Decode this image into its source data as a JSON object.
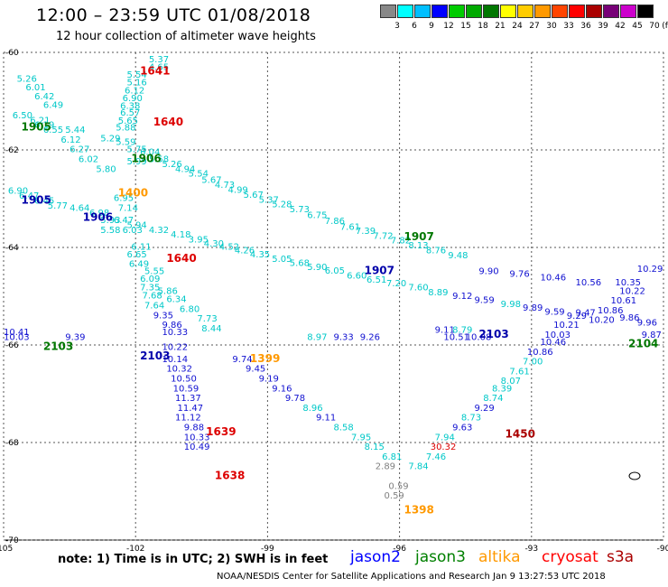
{
  "header": {
    "title": "12:00 – 23:59 UTC 01/08/2018",
    "subtitle": "12 hour collection of altimeter wave heights"
  },
  "legend": {
    "unit": "(ft)",
    "labels": [
      "3",
      "6",
      "9",
      "12",
      "15",
      "18",
      "21",
      "24",
      "27",
      "30",
      "33",
      "36",
      "39",
      "42",
      "45",
      "70"
    ],
    "colors": [
      "#888888",
      "#00ffff",
      "#00bfff",
      "#0000ff",
      "#00cc00",
      "#00aa00",
      "#007700",
      "#ffff00",
      "#ffcc00",
      "#ff9900",
      "#ff4400",
      "#ff0000",
      "#aa0000",
      "#770077",
      "#cc00cc",
      "#000000"
    ]
  },
  "axes": {
    "lat_labels": [
      "-60",
      "-62",
      "-64",
      "-66",
      "-68",
      "-70"
    ],
    "lon_labels": [
      "-105",
      "-102",
      "-99",
      "-96",
      "-93",
      "-90"
    ],
    "lon_values": [
      -105,
      -102,
      -99,
      -96,
      -93,
      -90
    ],
    "lat_values": [
      -60,
      -62,
      -64,
      -66,
      -68,
      -70
    ]
  },
  "colors": {
    "cyan": "#00c8c8",
    "blue": "#1010d0",
    "gray": "#808080",
    "jason2": "#0000ff",
    "jason3": "#008000",
    "altika": "#ff9900",
    "cryosat": "#ff0000",
    "s3a": "#aa0000"
  },
  "passes": [
    {
      "label": "1641",
      "color": "#dd0000",
      "lon": -101.9,
      "lat": -60.45
    },
    {
      "label": "1640",
      "color": "#dd0000",
      "lon": -101.6,
      "lat": -61.5
    },
    {
      "label": "1640",
      "color": "#dd0000",
      "lon": -101.3,
      "lat": -64.3
    },
    {
      "label": "1639",
      "color": "#dd0000",
      "lon": -100.4,
      "lat": -67.85
    },
    {
      "label": "1638",
      "color": "#dd0000",
      "lon": -100.2,
      "lat": -68.75
    },
    {
      "label": "1905",
      "color": "#007700",
      "lon": -104.6,
      "lat": -61.6
    },
    {
      "label": "1906",
      "color": "#007700",
      "lon": -102.1,
      "lat": -62.25
    },
    {
      "label": "1907",
      "color": "#007700",
      "lon": -95.9,
      "lat": -63.85
    },
    {
      "label": "1905",
      "color": "#0000aa",
      "lon": -104.6,
      "lat": -63.1
    },
    {
      "label": "1906",
      "color": "#0000aa",
      "lon": -103.2,
      "lat": -63.45
    },
    {
      "label": "1907",
      "color": "#0000aa",
      "lon": -96.8,
      "lat": -64.55
    },
    {
      "label": "1400",
      "color": "#ff9900",
      "lon": -102.4,
      "lat": -62.95
    },
    {
      "label": "2103",
      "color": "#0000aa",
      "lon": -101.9,
      "lat": -66.3
    },
    {
      "label": "2103",
      "color": "#0000aa",
      "lon": -94.2,
      "lat": -65.85
    },
    {
      "label": "2104",
      "color": "#007700",
      "lon": -90.8,
      "lat": -66.05
    },
    {
      "label": "2103",
      "color": "#007700",
      "lon": -104.1,
      "lat": -66.1
    },
    {
      "label": "1399",
      "color": "#ff9900",
      "lon": -99.4,
      "lat": -66.35
    },
    {
      "label": "1398",
      "color": "#ff9900",
      "lon": -95.9,
      "lat": -69.45
    },
    {
      "label": "1450",
      "color": "#aa0000",
      "lon": -93.6,
      "lat": -67.9
    }
  ],
  "wave_heights": [
    {
      "v": "5.37",
      "c": "c",
      "lon": -101.7,
      "lat": -60.2
    },
    {
      "v": "4.65",
      "c": "c",
      "lon": -101.7,
      "lat": -60.36
    },
    {
      "v": "5.54",
      "c": "c",
      "lon": -102.2,
      "lat": -60.52
    },
    {
      "v": "5.16",
      "c": "c",
      "lon": -102.2,
      "lat": -60.68
    },
    {
      "v": "6.12",
      "c": "c",
      "lon": -102.25,
      "lat": -60.84
    },
    {
      "v": "6.90",
      "c": "c",
      "lon": -102.3,
      "lat": -61.0
    },
    {
      "v": "6.38",
      "c": "c",
      "lon": -102.35,
      "lat": -61.16
    },
    {
      "v": "6.57",
      "c": "c",
      "lon": -102.35,
      "lat": -61.3
    },
    {
      "v": "5.65",
      "c": "c",
      "lon": -102.4,
      "lat": -61.46
    },
    {
      "v": "5.88",
      "c": "c",
      "lon": -102.45,
      "lat": -61.6
    },
    {
      "v": "5.26",
      "c": "c",
      "lon": -104.7,
      "lat": -60.6
    },
    {
      "v": "6.01",
      "c": "c",
      "lon": -104.5,
      "lat": -60.78
    },
    {
      "v": "6.42",
      "c": "c",
      "lon": -104.3,
      "lat": -60.96
    },
    {
      "v": "6.49",
      "c": "c",
      "lon": -104.1,
      "lat": -61.14
    },
    {
      "v": "6.50",
      "c": "c",
      "lon": -104.8,
      "lat": -61.35
    },
    {
      "v": "6.21",
      "c": "c",
      "lon": -104.4,
      "lat": -61.45
    },
    {
      "v": "6.19",
      "c": "c",
      "lon": -104.3,
      "lat": -61.55
    },
    {
      "v": "6.55",
      "c": "c",
      "lon": -104.1,
      "lat": -61.65
    },
    {
      "v": "5.44",
      "c": "c",
      "lon": -103.6,
      "lat": -61.65
    },
    {
      "v": "6.12",
      "c": "c",
      "lon": -103.7,
      "lat": -61.85
    },
    {
      "v": "6.27",
      "c": "c",
      "lon": -103.5,
      "lat": -62.05
    },
    {
      "v": "6.02",
      "c": "c",
      "lon": -103.3,
      "lat": -62.25
    },
    {
      "v": "5.80",
      "c": "c",
      "lon": -102.9,
      "lat": -62.45
    },
    {
      "v": "5.29",
      "c": "c",
      "lon": -102.8,
      "lat": -61.82
    },
    {
      "v": "5.59",
      "c": "c",
      "lon": -102.45,
      "lat": -61.9
    },
    {
      "v": "5.75",
      "c": "c",
      "lon": -102.2,
      "lat": -62.05
    },
    {
      "v": "6.04",
      "c": "c",
      "lon": -101.9,
      "lat": -62.1
    },
    {
      "v": "5.58",
      "c": "c",
      "lon": -101.7,
      "lat": -62.25
    },
    {
      "v": "5.26",
      "c": "c",
      "lon": -101.4,
      "lat": -62.35
    },
    {
      "v": "4.94",
      "c": "c",
      "lon": -101.1,
      "lat": -62.45
    },
    {
      "v": "5.54",
      "c": "c",
      "lon": -100.8,
      "lat": -62.55
    },
    {
      "v": "5.67",
      "c": "c",
      "lon": -100.5,
      "lat": -62.68
    },
    {
      "v": "4.73",
      "c": "c",
      "lon": -100.2,
      "lat": -62.78
    },
    {
      "v": "4.99",
      "c": "c",
      "lon": -99.9,
      "lat": -62.88
    },
    {
      "v": "5.67",
      "c": "c",
      "lon": -99.55,
      "lat": -62.98
    },
    {
      "v": "5.37",
      "c": "c",
      "lon": -99.2,
      "lat": -63.08
    },
    {
      "v": "5.28",
      "c": "c",
      "lon": -98.9,
      "lat": -63.18
    },
    {
      "v": "5.73",
      "c": "c",
      "lon": -98.5,
      "lat": -63.28
    },
    {
      "v": "6.75",
      "c": "c",
      "lon": -98.1,
      "lat": -63.4
    },
    {
      "v": "7.86",
      "c": "c",
      "lon": -97.7,
      "lat": -63.52
    },
    {
      "v": "7.61",
      "c": "c",
      "lon": -97.35,
      "lat": -63.64
    },
    {
      "v": "7.39",
      "c": "c",
      "lon": -97.0,
      "lat": -63.72
    },
    {
      "v": "7.72",
      "c": "c",
      "lon": -96.6,
      "lat": -63.82
    },
    {
      "v": "7.82",
      "c": "c",
      "lon": -96.2,
      "lat": -63.92
    },
    {
      "v": "8.13",
      "c": "c",
      "lon": -95.8,
      "lat": -64.02
    },
    {
      "v": "8.76",
      "c": "c",
      "lon": -95.4,
      "lat": -64.12
    },
    {
      "v": "9.48",
      "c": "c",
      "lon": -94.9,
      "lat": -64.22
    },
    {
      "v": "5.99",
      "c": "c",
      "lon": -102.2,
      "lat": -62.3
    },
    {
      "v": "6.90",
      "c": "c",
      "lon": -104.9,
      "lat": -62.9
    },
    {
      "v": "6.47",
      "c": "c",
      "lon": -104.65,
      "lat": -63.0
    },
    {
      "v": "6.45",
      "c": "c",
      "lon": -104.3,
      "lat": -63.1
    },
    {
      "v": "5.77",
      "c": "c",
      "lon": -104.0,
      "lat": -63.2
    },
    {
      "v": "4.64",
      "c": "c",
      "lon": -103.5,
      "lat": -63.25
    },
    {
      "v": "6.95",
      "c": "c",
      "lon": -102.5,
      "lat": -63.05
    },
    {
      "v": "7.14",
      "c": "c",
      "lon": -102.4,
      "lat": -63.25
    },
    {
      "v": "6.98",
      "c": "c",
      "lon": -103.05,
      "lat": -63.35
    },
    {
      "v": "5.93",
      "c": "c",
      "lon": -102.8,
      "lat": -63.5
    },
    {
      "v": "6.47",
      "c": "c",
      "lon": -102.5,
      "lat": -63.5
    },
    {
      "v": "5.94",
      "c": "c",
      "lon": -102.2,
      "lat": -63.6
    },
    {
      "v": "5.58",
      "c": "c",
      "lon": -102.8,
      "lat": -63.7
    },
    {
      "v": "6.03",
      "c": "c",
      "lon": -102.3,
      "lat": -63.7
    },
    {
      "v": "4.32",
      "c": "c",
      "lon": -101.7,
      "lat": -63.7
    },
    {
      "v": "4.18",
      "c": "c",
      "lon": -101.2,
      "lat": -63.8
    },
    {
      "v": "3.95",
      "c": "c",
      "lon": -100.8,
      "lat": -63.9
    },
    {
      "v": "4.30",
      "c": "c",
      "lon": -100.45,
      "lat": -63.98
    },
    {
      "v": "4.52",
      "c": "c",
      "lon": -100.1,
      "lat": -64.05
    },
    {
      "v": "4.26",
      "c": "c",
      "lon": -99.75,
      "lat": -64.12
    },
    {
      "v": "4.35",
      "c": "c",
      "lon": -99.4,
      "lat": -64.2
    },
    {
      "v": "5.05",
      "c": "c",
      "lon": -98.9,
      "lat": -64.3
    },
    {
      "v": "5.68",
      "c": "c",
      "lon": -98.5,
      "lat": -64.38
    },
    {
      "v": "5.90",
      "c": "c",
      "lon": -98.1,
      "lat": -64.46
    },
    {
      "v": "6.05",
      "c": "c",
      "lon": -97.7,
      "lat": -64.54
    },
    {
      "v": "6.60",
      "c": "c",
      "lon": -97.2,
      "lat": -64.64
    },
    {
      "v": "6.51",
      "c": "c",
      "lon": -96.75,
      "lat": -64.72
    },
    {
      "v": "7.20",
      "c": "c",
      "lon": -96.3,
      "lat": -64.8
    },
    {
      "v": "7.60",
      "c": "c",
      "lon": -95.8,
      "lat": -64.88
    },
    {
      "v": "8.89",
      "c": "c",
      "lon": -95.35,
      "lat": -64.98
    },
    {
      "v": "9.12",
      "b": 1,
      "c": "b",
      "lon": -94.8,
      "lat": -65.06
    },
    {
      "v": "9.59",
      "c": "b",
      "lon": -94.3,
      "lat": -65.14
    },
    {
      "v": "9.98",
      "c": "c",
      "lon": -93.7,
      "lat": -65.22
    },
    {
      "v": "9.89",
      "c": "b",
      "lon": -93.2,
      "lat": -65.3
    },
    {
      "v": "9.59",
      "c": "b",
      "lon": -92.7,
      "lat": -65.38
    },
    {
      "v": "9.29",
      "c": "b",
      "lon": -92.2,
      "lat": -65.46
    },
    {
      "v": "6.11",
      "c": "c",
      "lon": -102.1,
      "lat": -64.05
    },
    {
      "v": "6.65",
      "c": "c",
      "lon": -102.2,
      "lat": -64.2
    },
    {
      "v": "6.49",
      "c": "c",
      "lon": -102.15,
      "lat": -64.4
    },
    {
      "v": "5.55",
      "c": "c",
      "lon": -101.8,
      "lat": -64.55
    },
    {
      "v": "6.09",
      "c": "c",
      "lon": -101.9,
      "lat": -64.7
    },
    {
      "v": "7.35",
      "c": "c",
      "lon": -101.9,
      "lat": -64.88
    },
    {
      "v": "5.86",
      "c": "c",
      "lon": -101.5,
      "lat": -64.95
    },
    {
      "v": "7.68",
      "c": "c",
      "lon": -101.85,
      "lat": -65.05
    },
    {
      "v": "6.34",
      "c": "c",
      "lon": -101.3,
      "lat": -65.12
    },
    {
      "v": "7.64",
      "c": "c",
      "lon": -101.8,
      "lat": -65.25
    },
    {
      "v": "6.80",
      "c": "c",
      "lon": -101.0,
      "lat": -65.32
    },
    {
      "v": "9.35",
      "c": "b",
      "lon": -101.6,
      "lat": -65.45
    },
    {
      "v": "7.73",
      "c": "c",
      "lon": -100.6,
      "lat": -65.52
    },
    {
      "v": "9.86",
      "c": "b",
      "lon": -101.4,
      "lat": -65.65
    },
    {
      "v": "8.44",
      "c": "c",
      "lon": -100.5,
      "lat": -65.72
    },
    {
      "v": "10.33",
      "c": "b",
      "lon": -101.4,
      "lat": -65.8
    },
    {
      "v": "10.22",
      "c": "b",
      "lon": -101.4,
      "lat": -66.1
    },
    {
      "v": "10.14",
      "c": "b",
      "lon": -101.4,
      "lat": -66.35
    },
    {
      "v": "10.32",
      "c": "b",
      "lon": -101.3,
      "lat": -66.55
    },
    {
      "v": "10.50",
      "c": "b",
      "lon": -101.2,
      "lat": -66.75
    },
    {
      "v": "10.59",
      "c": "b",
      "lon": -101.15,
      "lat": -66.95
    },
    {
      "v": "11.37",
      "c": "b",
      "lon": -101.1,
      "lat": -67.15
    },
    {
      "v": "11.47",
      "c": "b",
      "lon": -101.05,
      "lat": -67.35
    },
    {
      "v": "11.12",
      "c": "b",
      "lon": -101.1,
      "lat": -67.55
    },
    {
      "v": "9.88",
      "c": "b",
      "lon": -100.9,
      "lat": -67.75
    },
    {
      "v": "10.33",
      "c": "b",
      "lon": -100.9,
      "lat": -67.95
    },
    {
      "v": "10.49",
      "c": "b",
      "lon": -100.9,
      "lat": -68.15
    },
    {
      "v": "9.74",
      "c": "b",
      "lon": -99.8,
      "lat": -66.35
    },
    {
      "v": "9.45",
      "c": "b",
      "lon": -99.5,
      "lat": -66.55
    },
    {
      "v": "9.19",
      "c": "b",
      "lon": -99.2,
      "lat": -66.75
    },
    {
      "v": "9.16",
      "c": "b",
      "lon": -98.9,
      "lat": -66.95
    },
    {
      "v": "9.78",
      "c": "b",
      "lon": -98.6,
      "lat": -67.15
    },
    {
      "v": "8.96",
      "c": "c",
      "lon": -98.2,
      "lat": -67.35
    },
    {
      "v": "9.11",
      "c": "b",
      "lon": -97.9,
      "lat": -67.55
    },
    {
      "v": "8.58",
      "c": "c",
      "lon": -97.5,
      "lat": -67.75
    },
    {
      "v": "7.95",
      "c": "c",
      "lon": -97.1,
      "lat": -67.95
    },
    {
      "v": "8.15",
      "c": "c",
      "lon": -96.8,
      "lat": -68.15
    },
    {
      "v": "6.81",
      "c": "c",
      "lon": -96.4,
      "lat": -68.35
    },
    {
      "v": "2.89",
      "c": "g",
      "lon": -96.55,
      "lat": -68.55
    },
    {
      "v": "0.59",
      "c": "g",
      "lon": -96.25,
      "lat": -68.95
    },
    {
      "v": "0.59",
      "c": "g",
      "lon": -96.35,
      "lat": -69.15
    },
    {
      "v": "7.84",
      "c": "c",
      "lon": -95.8,
      "lat": -68.55
    },
    {
      "v": "7.46",
      "c": "c",
      "lon": -95.4,
      "lat": -68.35
    },
    {
      "v": "30.32",
      "c": "r",
      "lon": -95.3,
      "lat": -68.15
    },
    {
      "v": "7.94",
      "c": "c",
      "lon": -95.2,
      "lat": -67.95
    },
    {
      "v": "9.63",
      "c": "b",
      "lon": -94.8,
      "lat": -67.75
    },
    {
      "v": "8.73",
      "c": "c",
      "lon": -94.6,
      "lat": -67.55
    },
    {
      "v": "9.29",
      "c": "b",
      "lon": -94.3,
      "lat": -67.35
    },
    {
      "v": "8.74",
      "c": "c",
      "lon": -94.1,
      "lat": -67.15
    },
    {
      "v": "8.39",
      "c": "c",
      "lon": -93.9,
      "lat": -66.95
    },
    {
      "v": "8.07",
      "c": "c",
      "lon": -93.7,
      "lat": -66.8
    },
    {
      "v": "7.61",
      "c": "c",
      "lon": -93.5,
      "lat": -66.6
    },
    {
      "v": "7.00",
      "c": "c",
      "lon": -93.2,
      "lat": -66.4
    },
    {
      "v": "10.86",
      "c": "b",
      "lon": -93.1,
      "lat": -66.2
    },
    {
      "v": "10.46",
      "c": "b",
      "lon": -92.8,
      "lat": -66.0
    },
    {
      "v": "10.41",
      "c": "b",
      "lon": -105.0,
      "lat": -65.8
    },
    {
      "v": "10.03",
      "c": "b",
      "lon": -105.0,
      "lat": -65.9
    },
    {
      "v": "9.39",
      "c": "b",
      "lon": -103.6,
      "lat": -65.9
    },
    {
      "v": "8.97",
      "c": "c",
      "lon": -98.1,
      "lat": -65.9
    },
    {
      "v": "9.33",
      "c": "b",
      "lon": -97.5,
      "lat": -65.9
    },
    {
      "v": "9.26",
      "c": "b",
      "lon": -96.9,
      "lat": -65.9
    },
    {
      "v": "9.11",
      "c": "b",
      "lon": -95.2,
      "lat": -65.75
    },
    {
      "v": "8.79",
      "c": "c",
      "lon": -94.8,
      "lat": -65.75
    },
    {
      "v": "10.51",
      "c": "b",
      "lon": -95.0,
      "lat": -65.9
    },
    {
      "v": "10.08",
      "c": "b",
      "lon": -94.5,
      "lat": -65.9
    },
    {
      "v": "10.21",
      "c": "b",
      "lon": -92.5,
      "lat": -65.65
    },
    {
      "v": "10.03",
      "c": "b",
      "lon": -92.7,
      "lat": -65.85
    },
    {
      "v": "9.90",
      "c": "b",
      "lon": -94.2,
      "lat": -64.55
    },
    {
      "v": "9.76",
      "c": "b",
      "lon": -93.5,
      "lat": -64.6
    },
    {
      "v": "10.46",
      "c": "b",
      "lon": -92.8,
      "lat": -64.68
    },
    {
      "v": "10.56",
      "c": "b",
      "lon": -92.0,
      "lat": -64.78
    },
    {
      "v": "10.35",
      "c": "b",
      "lon": -91.1,
      "lat": -64.78
    },
    {
      "v": "10.29",
      "c": "b",
      "lon": -90.6,
      "lat": -64.5
    },
    {
      "v": "10.22",
      "c": "b",
      "lon": -91.0,
      "lat": -64.95
    },
    {
      "v": "10.61",
      "c": "b",
      "lon": -91.2,
      "lat": -65.15
    },
    {
      "v": "10.86",
      "c": "b",
      "lon": -91.5,
      "lat": -65.35
    },
    {
      "v": "10.20",
      "c": "b",
      "lon": -91.7,
      "lat": -65.55
    },
    {
      "v": "9.47",
      "c": "b",
      "lon": -92.0,
      "lat": -65.4
    },
    {
      "v": "9.86",
      "c": "b",
      "lon": -91.0,
      "lat": -65.5
    },
    {
      "v": "9.96",
      "c": "b",
      "lon": -90.6,
      "lat": -65.6
    },
    {
      "v": "9.87",
      "c": "b",
      "lon": -90.5,
      "lat": -65.85
    }
  ],
  "notes": {
    "note": "note:  1) Time is in UTC;  2) SWH is in feet",
    "sats": [
      "jason2",
      "jason3",
      "altika",
      "cryosat",
      "s3a"
    ],
    "credit": "NOAA/NESDIS Center for Satellite Applications and Research   Jan  9 13:27:53 UTC 2018"
  }
}
